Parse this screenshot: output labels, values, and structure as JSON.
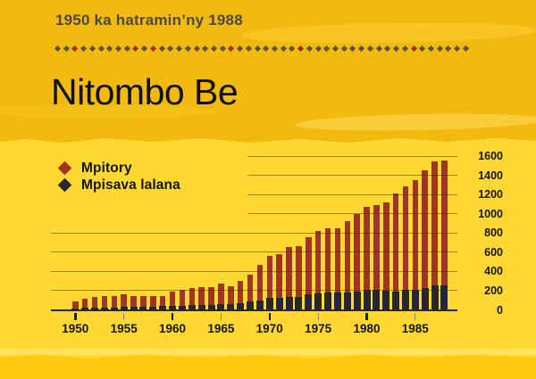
{
  "header": {
    "subtitle": "1950 ka hatramin’ny 1988",
    "title": "Nitombo Be"
  },
  "decor": {
    "diamond_count": 48,
    "red_indices": [
      2,
      9,
      11,
      20,
      28,
      41
    ],
    "gray_color": "#55524b",
    "red_color": "#9e2d20"
  },
  "legend": {
    "items": [
      {
        "label": "Mpitory",
        "color": "#a23424"
      },
      {
        "label": "Mpisava lalana",
        "color": "#26262e"
      }
    ]
  },
  "chart_data": {
    "type": "bar",
    "stacked": "overlay-bottom",
    "title": "Nitombo Be",
    "subtitle": "1950 ka hatramin’ny 1988",
    "grid": "horizontal",
    "legend_position": "top-left",
    "ylim": [
      0,
      1600
    ],
    "yticks": [
      0,
      200,
      400,
      600,
      800,
      1000,
      1200,
      1400,
      1600
    ],
    "xtick_labels": [
      "1950",
      "1955",
      "1960",
      "1965",
      "1970",
      "1975",
      "1980",
      "1985"
    ],
    "x_years": [
      1950,
      1951,
      1952,
      1953,
      1954,
      1955,
      1956,
      1957,
      1958,
      1959,
      1960,
      1961,
      1962,
      1963,
      1964,
      1965,
      1966,
      1967,
      1968,
      1969,
      1970,
      1971,
      1972,
      1973,
      1974,
      1975,
      1976,
      1977,
      1978,
      1979,
      1980,
      1981,
      1982,
      1983,
      1984,
      1985,
      1986,
      1987,
      1988
    ],
    "series": [
      {
        "name": "Mpitory",
        "color": "#a23424",
        "role": "total-bar",
        "values": [
          90,
          115,
          134,
          140,
          147,
          165,
          140,
          140,
          141,
          148,
          193,
          210,
          225,
          239,
          240,
          277,
          246,
          302,
          370,
          466,
          559,
          580,
          651,
          664,
          759,
          824,
          852,
          846,
          921,
          998,
          1069,
          1090,
          1121,
          1215,
          1282,
          1347,
          1452,
          1548,
          1554
        ]
      },
      {
        "name": "Mpisava lalana",
        "color": "#26262e",
        "role": "bottom-overlay",
        "values": [
          18,
          20,
          22,
          25,
          27,
          30,
          30,
          32,
          34,
          38,
          42,
          45,
          48,
          52,
          55,
          60,
          65,
          70,
          85,
          100,
          125,
          130,
          132,
          137,
          160,
          170,
          178,
          178,
          184,
          190,
          207,
          207,
          200,
          193,
          207,
          207,
          232,
          255,
          255
        ]
      }
    ]
  },
  "colors": {
    "top_band": "#f2b90f",
    "chart_band": "#ffd831",
    "bottom_strip": "#ffc90d",
    "axis": "#2b2820",
    "bold_tick": "#1b1b1b",
    "thin_tick": "#8b867c"
  }
}
